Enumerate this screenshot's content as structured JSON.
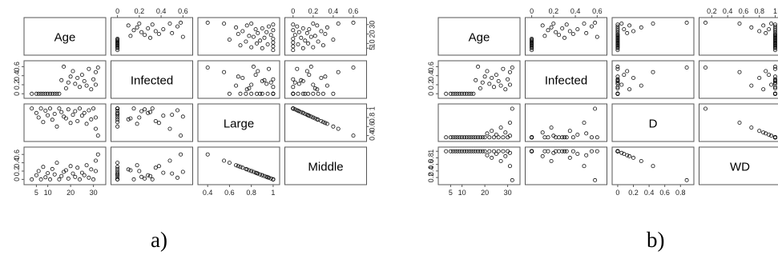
{
  "panels": [
    {
      "caption": "a)",
      "chart_data": {
        "type": "scatter",
        "subtype": "scatterplot-matrix",
        "variables": [
          "Age",
          "Infected",
          "Large",
          "Middle"
        ],
        "n": 30,
        "axes": {
          "Age": {
            "range": [
              1,
              34
            ],
            "ticks": [
              5,
              10,
              20,
              30
            ]
          },
          "Infected": {
            "range": [
              -0.03,
              0.66
            ],
            "ticks": [
              0.0,
              0.2,
              0.4,
              0.6
            ]
          },
          "Large": {
            "range": [
              0.34,
              1.03
            ],
            "ticks": [
              0.4,
              0.6,
              0.8,
              1.0
            ]
          },
          "Middle": {
            "range": [
              -0.05,
              0.7
            ],
            "ticks": [
              0.0,
              0.2,
              0.4,
              0.6
            ]
          }
        },
        "data": {
          "Age": [
            3,
            5,
            6,
            7,
            8,
            9,
            10,
            11,
            12,
            13,
            14,
            15,
            16,
            17,
            18,
            19,
            20,
            21,
            22,
            23,
            24,
            25,
            26,
            27,
            28,
            29,
            30,
            31,
            31,
            32
          ],
          "Infected": [
            0.0,
            0.0,
            0.0,
            0.0,
            0.0,
            0.0,
            0.0,
            0.0,
            0.0,
            0.0,
            0.0,
            0.0,
            0.3,
            0.6,
            0.12,
            0.25,
            0.38,
            0.5,
            0.22,
            0.35,
            0.15,
            0.42,
            0.28,
            0.18,
            0.55,
            0.1,
            0.32,
            0.48,
            0.2,
            0.58
          ],
          "Large": [
            1.0,
            0.9,
            0.8,
            1.0,
            0.7,
            0.95,
            0.85,
            1.0,
            0.75,
            0.88,
            0.6,
            1.0,
            0.92,
            0.82,
            0.78,
            0.98,
            0.68,
            0.86,
            0.94,
            0.72,
            1.0,
            0.84,
            0.9,
            0.66,
            0.96,
            0.76,
            1.0,
            0.55,
            0.8,
            0.4
          ],
          "Middle": [
            0.0,
            0.1,
            0.2,
            0.0,
            0.3,
            0.05,
            0.15,
            0.0,
            0.25,
            0.12,
            0.4,
            0.0,
            0.08,
            0.18,
            0.22,
            0.02,
            0.32,
            0.14,
            0.06,
            0.28,
            0.0,
            0.16,
            0.1,
            0.34,
            0.04,
            0.24,
            0.0,
            0.45,
            0.2,
            0.6
          ]
        },
        "title": ""
      }
    },
    {
      "caption": "b)",
      "chart_data": {
        "type": "scatter",
        "subtype": "scatterplot-matrix",
        "variables": [
          "Age",
          "Infected",
          "D",
          "WD"
        ],
        "n": 30,
        "axes": {
          "Age": {
            "range": [
              1,
              34
            ],
            "ticks": [
              5,
              10,
              20,
              30
            ]
          },
          "Infected": {
            "range": [
              -0.03,
              0.66
            ],
            "ticks": [
              0.0,
              0.2,
              0.4,
              0.6
            ]
          },
          "D": {
            "range": [
              -0.03,
              0.93
            ],
            "ticks": [
              0.0,
              0.2,
              0.4,
              0.6,
              0.8
            ]
          },
          "WD": {
            "range": [
              0.08,
              1.03
            ],
            "ticks": [
              0.2,
              0.4,
              0.6,
              0.8,
              1.0
            ]
          }
        },
        "data": {
          "Age": [
            3,
            5,
            6,
            7,
            8,
            9,
            10,
            11,
            12,
            13,
            14,
            15,
            16,
            17,
            18,
            19,
            20,
            21,
            22,
            23,
            24,
            25,
            26,
            27,
            28,
            29,
            30,
            31,
            31,
            32
          ],
          "Infected": [
            0.0,
            0.0,
            0.0,
            0.0,
            0.0,
            0.0,
            0.0,
            0.0,
            0.0,
            0.0,
            0.0,
            0.0,
            0.3,
            0.6,
            0.12,
            0.25,
            0.38,
            0.5,
            0.22,
            0.35,
            0.15,
            0.42,
            0.28,
            0.18,
            0.55,
            0.1,
            0.32,
            0.48,
            0.2,
            0.58
          ],
          "D": [
            0.0,
            0.0,
            0.0,
            0.0,
            0.0,
            0.0,
            0.0,
            0.0,
            0.0,
            0.0,
            0.0,
            0.0,
            0.0,
            0.0,
            0.0,
            0.0,
            0.0,
            0.12,
            0.0,
            0.2,
            0.0,
            0.08,
            0.0,
            0.3,
            0.0,
            0.15,
            0.0,
            0.45,
            0.05,
            0.88
          ],
          "WD": [
            1.0,
            1.0,
            1.0,
            1.0,
            1.0,
            1.0,
            1.0,
            1.0,
            1.0,
            1.0,
            1.0,
            1.0,
            1.0,
            1.0,
            1.0,
            1.0,
            1.0,
            0.88,
            1.0,
            0.8,
            1.0,
            0.92,
            1.0,
            0.7,
            1.0,
            0.85,
            1.0,
            0.55,
            0.95,
            0.12
          ]
        },
        "title": ""
      }
    }
  ]
}
